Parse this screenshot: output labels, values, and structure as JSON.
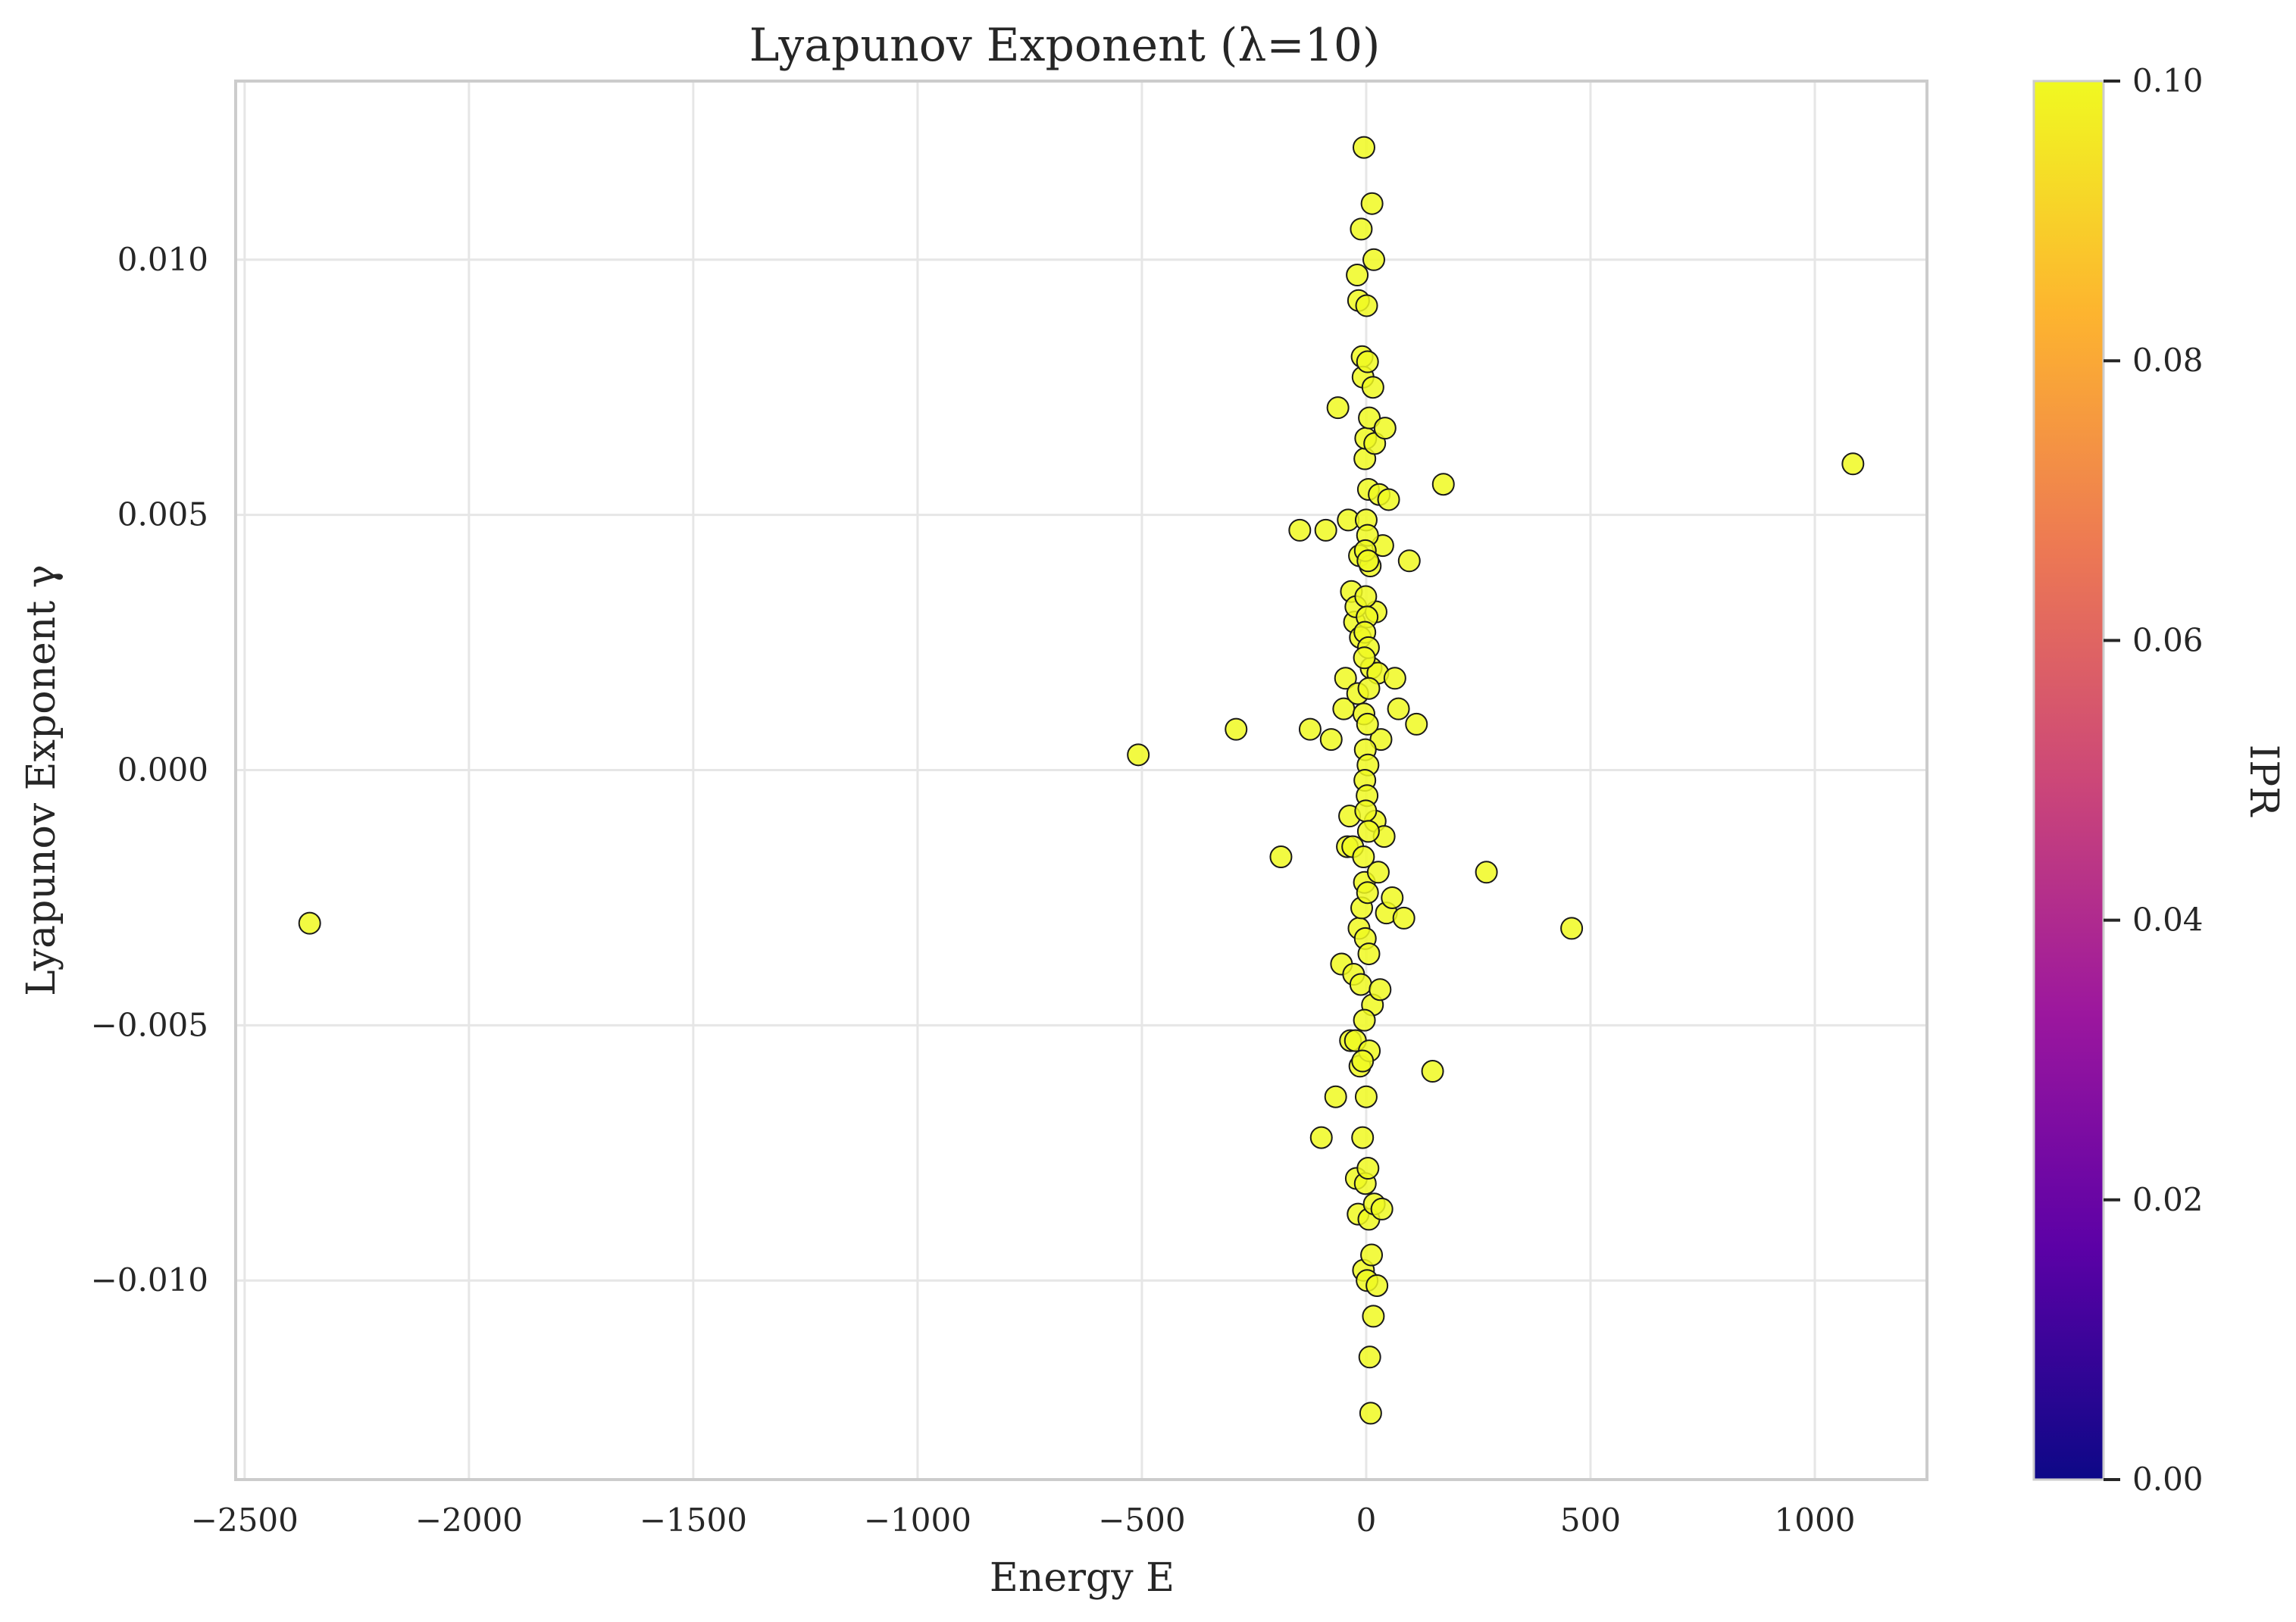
{
  "chart_data": {
    "type": "scatter",
    "title": "Lyapunov Exponent (λ=10)",
    "xlabel": "Energy E",
    "ylabel": "Lyapunov Exponent γ",
    "xlim": [
      -2520,
      1250
    ],
    "ylim": [
      -0.0139,
      0.0135
    ],
    "xticks": [
      -2500,
      -2000,
      -1500,
      -1000,
      -500,
      0,
      500,
      1000
    ],
    "xtick_labels": [
      "−2500",
      "−2000",
      "−1500",
      "−1000",
      "−500",
      "0",
      "500",
      "1000"
    ],
    "yticks": [
      -0.01,
      -0.005,
      0.0,
      0.005,
      0.01
    ],
    "ytick_labels": [
      "−0.010",
      "−0.005",
      "0.000",
      "0.005",
      "0.010"
    ],
    "grid": true,
    "marker_color": "#f0f921",
    "marker_edge_color": "#1a1a1a",
    "colorbar": {
      "label": "IPR",
      "range": [
        0.0,
        0.1
      ],
      "ticks": [
        0.0,
        0.02,
        0.04,
        0.06,
        0.08,
        0.1
      ],
      "tick_labels": [
        "0.00",
        "0.02",
        "0.04",
        "0.06",
        "0.08",
        "0.10"
      ],
      "colormap": [
        "#0d0887",
        "#5c01a6",
        "#9c179e",
        "#cc4778",
        "#ed7953",
        "#fdb42f",
        "#f0f921"
      ]
    },
    "points": [
      {
        "x": -2355,
        "y": -0.003
      },
      {
        "x": -508,
        "y": 0.0003
      },
      {
        "x": -290,
        "y": 0.0008
      },
      {
        "x": -190,
        "y": -0.0017
      },
      {
        "x": -148,
        "y": 0.0047
      },
      {
        "x": -125,
        "y": 0.0008
      },
      {
        "x": -100,
        "y": -0.0072
      },
      {
        "x": -90,
        "y": 0.0047
      },
      {
        "x": -78,
        "y": 0.0006
      },
      {
        "x": -68,
        "y": -0.0064
      },
      {
        "x": -63,
        "y": 0.0071
      },
      {
        "x": -55,
        "y": -0.0038
      },
      {
        "x": -50,
        "y": 0.0012
      },
      {
        "x": -46,
        "y": 0.0018
      },
      {
        "x": -42,
        "y": -0.0015
      },
      {
        "x": -40,
        "y": 0.0049
      },
      {
        "x": -37,
        "y": -0.0009
      },
      {
        "x": -35,
        "y": -0.0053
      },
      {
        "x": -33,
        "y": 0.0035
      },
      {
        "x": -30,
        "y": -0.0015
      },
      {
        "x": -28,
        "y": -0.004
      },
      {
        "x": -26,
        "y": 0.0029
      },
      {
        "x": -24,
        "y": -0.0053
      },
      {
        "x": -23,
        "y": 0.0032
      },
      {
        "x": -22,
        "y": -0.008
      },
      {
        "x": -20,
        "y": 0.0097
      },
      {
        "x": -19,
        "y": 0.0015
      },
      {
        "x": -18,
        "y": -0.0087
      },
      {
        "x": -17,
        "y": 0.0092
      },
      {
        "x": -16,
        "y": -0.0031
      },
      {
        "x": -15,
        "y": 0.0042
      },
      {
        "x": -14,
        "y": -0.0058
      },
      {
        "x": -13,
        "y": 0.0026
      },
      {
        "x": -12,
        "y": -0.0042
      },
      {
        "x": -11,
        "y": 0.0106
      },
      {
        "x": -10,
        "y": -0.0027
      },
      {
        "x": -9,
        "y": 0.0081
      },
      {
        "x": -8,
        "y": -0.0072
      },
      {
        "x": -7,
        "y": 0.0077
      },
      {
        "x": -6,
        "y": -0.0098
      },
      {
        "x": -5,
        "y": 0.0122
      },
      {
        "x": -4,
        "y": -0.0022
      },
      {
        "x": -3,
        "y": 0.0061
      },
      {
        "x": -2,
        "y": -0.0081
      },
      {
        "x": -1,
        "y": 0.0065
      },
      {
        "x": 0,
        "y": -0.0064
      },
      {
        "x": 1,
        "y": 0.0091
      },
      {
        "x": 2,
        "y": -0.01
      },
      {
        "x": 3,
        "y": 0.008
      },
      {
        "x": 4,
        "y": -0.0078
      },
      {
        "x": 5,
        "y": 0.0055
      },
      {
        "x": 6,
        "y": -0.0088
      },
      {
        "x": 7,
        "y": 0.0069
      },
      {
        "x": 8,
        "y": -0.0115
      },
      {
        "x": 9,
        "y": 0.004
      },
      {
        "x": 10,
        "y": -0.0126
      },
      {
        "x": 11,
        "y": 0.002
      },
      {
        "x": 12,
        "y": -0.0095
      },
      {
        "x": 13,
        "y": 0.0111
      },
      {
        "x": 14,
        "y": -0.0046
      },
      {
        "x": 15,
        "y": 0.0075
      },
      {
        "x": 16,
        "y": -0.0107
      },
      {
        "x": 17,
        "y": 0.01
      },
      {
        "x": 18,
        "y": -0.0085
      },
      {
        "x": 19,
        "y": 0.0064
      },
      {
        "x": 20,
        "y": -0.001
      },
      {
        "x": 22,
        "y": 0.0031
      },
      {
        "x": 24,
        "y": -0.0101
      },
      {
        "x": 26,
        "y": 0.0019
      },
      {
        "x": 27,
        "y": -0.002
      },
      {
        "x": 29,
        "y": 0.0054
      },
      {
        "x": 31,
        "y": -0.0043
      },
      {
        "x": 33,
        "y": 0.0006
      },
      {
        "x": 35,
        "y": -0.0086
      },
      {
        "x": 37,
        "y": 0.0044
      },
      {
        "x": 40,
        "y": -0.0013
      },
      {
        "x": 42,
        "y": 0.0067
      },
      {
        "x": 45,
        "y": -0.0028
      },
      {
        "x": 50,
        "y": 0.0053
      },
      {
        "x": 58,
        "y": -0.0025
      },
      {
        "x": 64,
        "y": 0.0018
      },
      {
        "x": 72,
        "y": 0.0012
      },
      {
        "x": 84,
        "y": -0.0029
      },
      {
        "x": 96,
        "y": 0.0041
      },
      {
        "x": 112,
        "y": 0.0009
      },
      {
        "x": 148,
        "y": -0.0059
      },
      {
        "x": 172,
        "y": 0.0056
      },
      {
        "x": 268,
        "y": -0.002
      },
      {
        "x": 458,
        "y": -0.0031
      },
      {
        "x": 1085,
        "y": 0.006
      },
      {
        "x": 0,
        "y": 0.0049
      },
      {
        "x": 3,
        "y": 0.0046
      },
      {
        "x": -2,
        "y": 0.0043
      },
      {
        "x": 4,
        "y": 0.0041
      },
      {
        "x": -1,
        "y": 0.0034
      },
      {
        "x": 2,
        "y": 0.003
      },
      {
        "x": -3,
        "y": 0.0027
      },
      {
        "x": 5,
        "y": 0.0024
      },
      {
        "x": -4,
        "y": 0.0022
      },
      {
        "x": 6,
        "y": 0.0016
      },
      {
        "x": -5,
        "y": 0.0011
      },
      {
        "x": 3,
        "y": 0.0009
      },
      {
        "x": -2,
        "y": 0.0004
      },
      {
        "x": 4,
        "y": 0.0001
      },
      {
        "x": -3,
        "y": -0.0002
      },
      {
        "x": 2,
        "y": -0.0005
      },
      {
        "x": -1,
        "y": -0.0008
      },
      {
        "x": 5,
        "y": -0.0012
      },
      {
        "x": -6,
        "y": -0.0017
      },
      {
        "x": 3,
        "y": -0.0024
      },
      {
        "x": -2,
        "y": -0.0033
      },
      {
        "x": 6,
        "y": -0.0036
      },
      {
        "x": -4,
        "y": -0.0049
      },
      {
        "x": 7,
        "y": -0.0055
      },
      {
        "x": -8,
        "y": -0.0057
      }
    ]
  }
}
